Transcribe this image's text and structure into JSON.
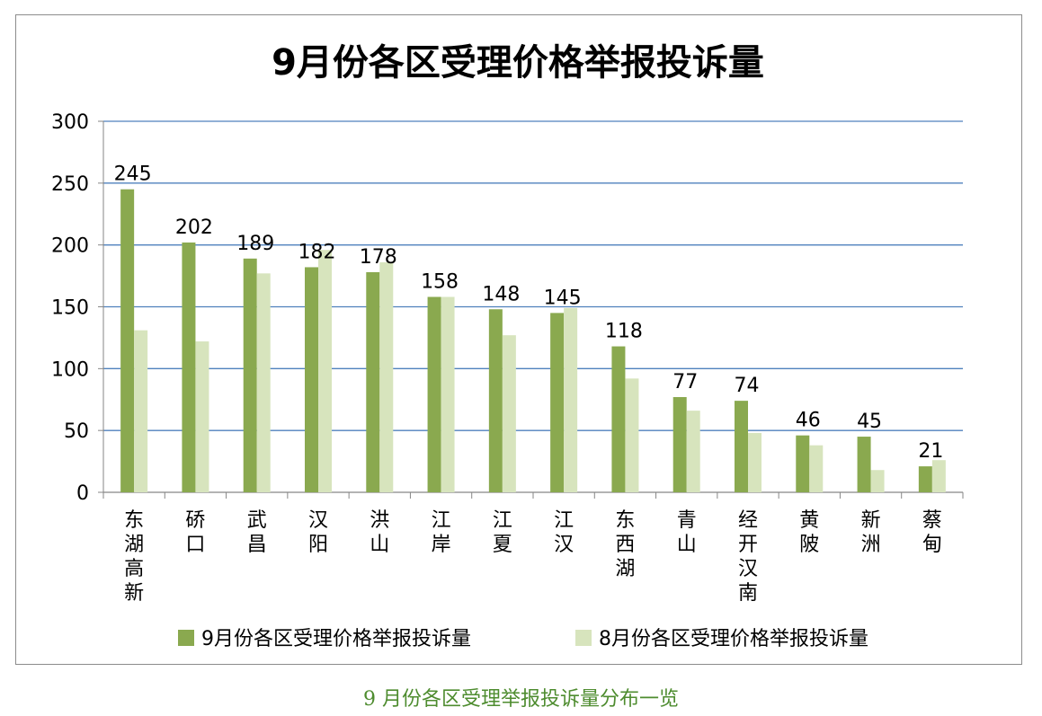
{
  "caption": "9 月份各区受理举报投诉量分布一览",
  "colors": {
    "series1": "#8aa94f",
    "series2": "#d7e4bd",
    "gridline": "#4f81bd",
    "axis": "#868686",
    "caption": "#4e8c2f"
  },
  "chart_data": {
    "type": "bar",
    "title": "9月份各区受理价格举报投诉量",
    "xlabel": "",
    "ylabel": "",
    "ylim": [
      0,
      300
    ],
    "yticks": [
      0,
      50,
      100,
      150,
      200,
      250,
      300
    ],
    "grid": true,
    "legend_position": "bottom",
    "categories": [
      "东湖高新",
      "硚口",
      "武昌",
      "汉阳",
      "洪山",
      "江岸",
      "江夏",
      "江汉",
      "东西湖",
      "青山",
      "经开汉南",
      "黄陂",
      "新洲",
      "蔡甸"
    ],
    "series": [
      {
        "name": "9月份各区受理价格举报投诉量",
        "values": [
          245,
          202,
          189,
          182,
          178,
          158,
          148,
          145,
          118,
          77,
          74,
          46,
          45,
          21
        ],
        "data_labels": true
      },
      {
        "name": "8月份各区受理价格举报投诉量",
        "values": [
          131,
          122,
          177,
          196,
          186,
          158,
          127,
          149,
          92,
          66,
          48,
          38,
          18,
          26
        ],
        "data_labels": false
      }
    ]
  }
}
